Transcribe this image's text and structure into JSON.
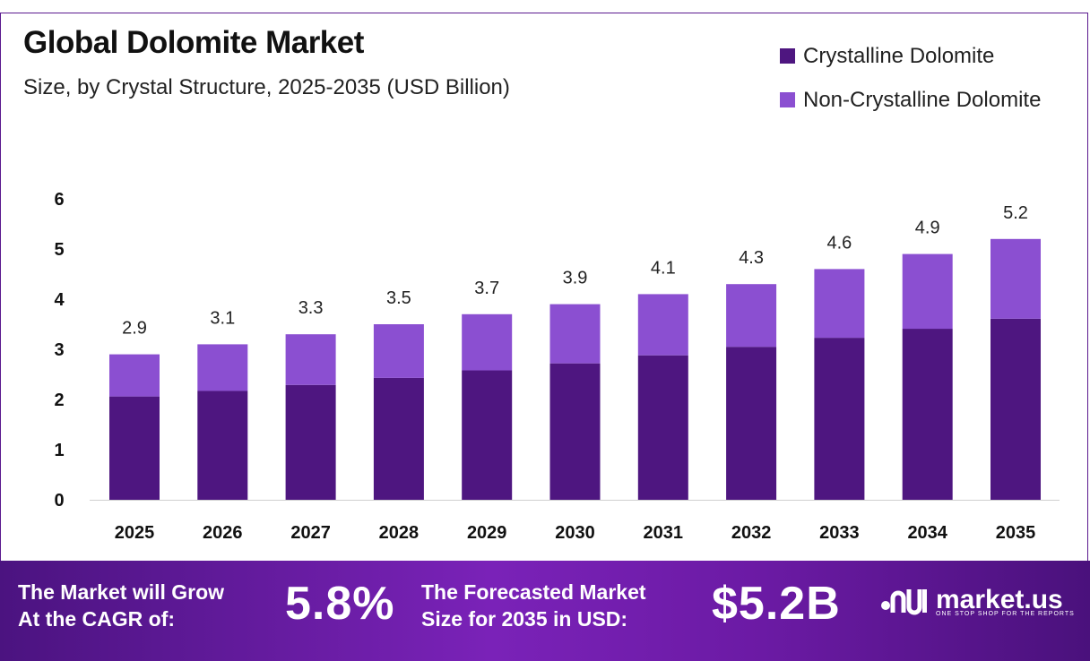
{
  "header": {
    "title": "Global Dolomite Market",
    "subtitle": "Size, by Crystal Structure, 2025-2035 (USD Billion)"
  },
  "legend": [
    {
      "label": "Crystalline Dolomite",
      "color": "#4e1680"
    },
    {
      "label": "Non-Crystalline Dolomite",
      "color": "#8b4fd1"
    }
  ],
  "chart_data": {
    "type": "bar",
    "stacked": true,
    "categories": [
      "2025",
      "2026",
      "2027",
      "2028",
      "2029",
      "2030",
      "2031",
      "2032",
      "2033",
      "2034",
      "2035"
    ],
    "series": [
      {
        "name": "Crystalline Dolomite",
        "color": "#4e1680",
        "values": [
          2.06,
          2.17,
          2.29,
          2.43,
          2.58,
          2.72,
          2.88,
          3.05,
          3.23,
          3.41,
          3.61
        ]
      },
      {
        "name": "Non-Crystalline Dolomite",
        "color": "#8b4fd1",
        "values": [
          0.84,
          0.93,
          1.01,
          1.07,
          1.12,
          1.18,
          1.22,
          1.25,
          1.37,
          1.49,
          1.59
        ]
      }
    ],
    "totals": [
      "2.9",
      "3.1",
      "3.3",
      "3.5",
      "3.7",
      "3.9",
      "4.1",
      "4.3",
      "4.6",
      "4.9",
      "5.2"
    ],
    "yticks": [
      "0",
      "1",
      "2",
      "3",
      "4",
      "5",
      "6"
    ],
    "ylim": [
      0,
      6
    ],
    "grid": false,
    "legend_position": "top-right"
  },
  "banner": {
    "cagr_text_line1": "The Market will Grow",
    "cagr_text_line2": "At the CAGR of:",
    "cagr_value": "5.8%",
    "forecast_text_line1": "The Forecasted Market",
    "forecast_text_line2": "Size for 2035 in USD:",
    "forecast_value": "$5.2B",
    "brand_name": "market.us",
    "brand_tagline": "ONE STOP SHOP FOR THE REPORTS"
  }
}
